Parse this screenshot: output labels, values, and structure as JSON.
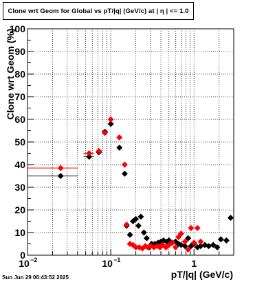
{
  "chart_data": {
    "type": "scatter",
    "title": "Clone wrt Geom for Global vs pT/|q| (GeV/c) at |  η  | <= 1.0",
    "xlabel": "pT/|q| (GeV/c)",
    "ylabel": "Clone wrt Geom (%)",
    "x_scale": "log",
    "xlim": [
      0.01,
      3.0
    ],
    "ylim": [
      0,
      100
    ],
    "grid": true,
    "x_ticks": [
      {
        "value": 0.01,
        "label": "10",
        "exp": "−2"
      },
      {
        "value": 0.1,
        "label": "10",
        "exp": "−1"
      },
      {
        "value": 1,
        "label": "1",
        "exp": ""
      }
    ],
    "y_ticks": [
      0,
      10,
      20,
      30,
      40,
      50,
      60,
      70,
      80,
      90,
      100
    ],
    "series": [
      {
        "color": "#000000",
        "marker": "diamond",
        "points": [
          {
            "x": 0.025,
            "y": 35,
            "xlo": 0.01,
            "xhi": 0.04
          },
          {
            "x": 0.055,
            "y": 43.5,
            "xlo": 0.047,
            "xhi": 0.063
          },
          {
            "x": 0.072,
            "y": 45.5
          },
          {
            "x": 0.085,
            "y": 54.5
          },
          {
            "x": 0.1,
            "y": 58
          },
          {
            "x": 0.127,
            "y": 47.5
          },
          {
            "x": 0.147,
            "y": 36
          },
          {
            "x": 0.155,
            "y": 13
          },
          {
            "x": 0.17,
            "y": 9
          },
          {
            "x": 0.185,
            "y": 15
          },
          {
            "x": 0.2,
            "y": 16
          },
          {
            "x": 0.215,
            "y": 13
          },
          {
            "x": 0.23,
            "y": 17
          },
          {
            "x": 0.25,
            "y": 10
          },
          {
            "x": 0.27,
            "y": 7.5
          },
          {
            "x": 0.29,
            "y": 3.5
          },
          {
            "x": 0.31,
            "y": 5
          },
          {
            "x": 0.34,
            "y": 5
          },
          {
            "x": 0.37,
            "y": 5.5
          },
          {
            "x": 0.4,
            "y": 6
          },
          {
            "x": 0.43,
            "y": 6.5
          },
          {
            "x": 0.47,
            "y": 6
          },
          {
            "x": 0.5,
            "y": 6.5
          },
          {
            "x": 0.55,
            "y": 5.5
          },
          {
            "x": 0.6,
            "y": 6
          },
          {
            "x": 0.65,
            "y": 5
          },
          {
            "x": 0.7,
            "y": 4.5
          },
          {
            "x": 0.78,
            "y": 4
          },
          {
            "x": 0.85,
            "y": 7.5
          },
          {
            "x": 0.92,
            "y": 4
          },
          {
            "x": 1.0,
            "y": 5
          },
          {
            "x": 1.1,
            "y": 3.5
          },
          {
            "x": 1.2,
            "y": 4
          },
          {
            "x": 1.35,
            "y": 4.5
          },
          {
            "x": 1.5,
            "y": 4
          },
          {
            "x": 1.7,
            "y": 4.5
          },
          {
            "x": 1.9,
            "y": 3.5
          },
          {
            "x": 2.1,
            "y": 7
          },
          {
            "x": 2.45,
            "y": 6.5
          },
          {
            "x": 2.75,
            "y": 16.5
          }
        ]
      },
      {
        "color": "#ff0000",
        "marker": "diamond",
        "points": [
          {
            "x": 0.025,
            "y": 38.5,
            "xlo": 0.01,
            "xhi": 0.04
          },
          {
            "x": 0.055,
            "y": 45,
            "xlo": 0.047,
            "xhi": 0.063
          },
          {
            "x": 0.072,
            "y": 46
          },
          {
            "x": 0.085,
            "y": 54
          },
          {
            "x": 0.1,
            "y": 60
          },
          {
            "x": 0.127,
            "y": 52
          },
          {
            "x": 0.147,
            "y": 40
          },
          {
            "x": 0.155,
            "y": 13.5
          },
          {
            "x": 0.17,
            "y": 5
          },
          {
            "x": 0.185,
            "y": 4.5
          },
          {
            "x": 0.2,
            "y": 3.5
          },
          {
            "x": 0.22,
            "y": 3.5
          },
          {
            "x": 0.24,
            "y": 3
          },
          {
            "x": 0.26,
            "y": 4
          },
          {
            "x": 0.28,
            "y": 3.5
          },
          {
            "x": 0.3,
            "y": 4
          },
          {
            "x": 0.33,
            "y": 3.5
          },
          {
            "x": 0.36,
            "y": 4
          },
          {
            "x": 0.39,
            "y": 3.5
          },
          {
            "x": 0.42,
            "y": 4.5
          },
          {
            "x": 0.46,
            "y": 3.5
          },
          {
            "x": 0.5,
            "y": 4.5
          },
          {
            "x": 0.55,
            "y": 5.5
          },
          {
            "x": 0.6,
            "y": 3.5
          },
          {
            "x": 0.65,
            "y": 8
          },
          {
            "x": 0.7,
            "y": 9.5
          },
          {
            "x": 0.78,
            "y": 6
          },
          {
            "x": 0.85,
            "y": 2.5
          },
          {
            "x": 0.92,
            "y": 12
          },
          {
            "x": 1.0,
            "y": 5.5
          },
          {
            "x": 1.1,
            "y": 12
          },
          {
            "x": 1.2,
            "y": 6
          }
        ]
      }
    ]
  },
  "timestamp": "Sun Jun 29 06:43:52 2025"
}
